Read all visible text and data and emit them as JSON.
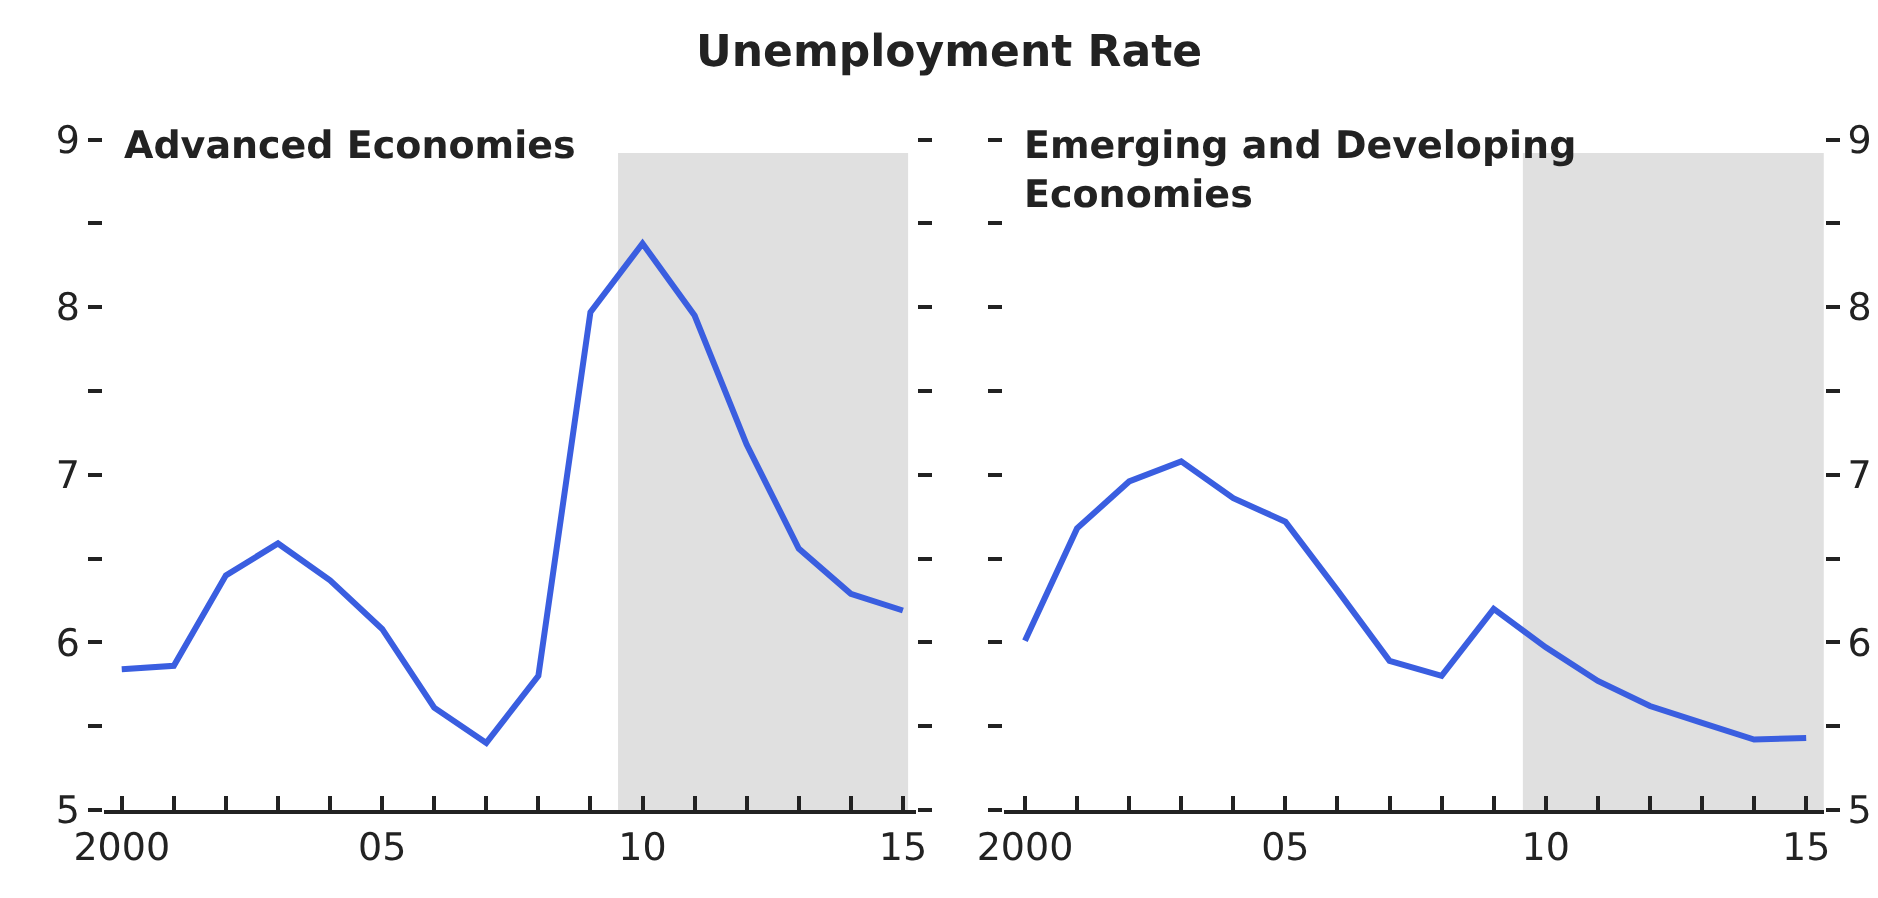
{
  "chart_data": [
    {
      "type": "line",
      "title": "Unemployment Rate",
      "subtitle": "Advanced Economies",
      "x": [
        2000,
        2001,
        2002,
        2003,
        2004,
        2005,
        2006,
        2007,
        2008,
        2009,
        2010,
        2011,
        2012,
        2013,
        2014,
        2015
      ],
      "series": [
        {
          "color": "#3a5ee0",
          "values": [
            5.84,
            5.86,
            6.4,
            6.59,
            6.37,
            6.08,
            5.61,
            5.4,
            5.8,
            7.97,
            8.38,
            7.95,
            7.18,
            6.56,
            6.29,
            6.19
          ]
        }
      ],
      "xlim": [
        1999.65,
        2015.25
      ],
      "ylim": [
        5,
        9
      ],
      "xticks": [
        {
          "value": 2000,
          "label": "2000"
        },
        {
          "value": 2001,
          "label": null
        },
        {
          "value": 2002,
          "label": null
        },
        {
          "value": 2003,
          "label": null
        },
        {
          "value": 2004,
          "label": null
        },
        {
          "value": 2005,
          "label": "05"
        },
        {
          "value": 2006,
          "label": null
        },
        {
          "value": 2007,
          "label": null
        },
        {
          "value": 2008,
          "label": null
        },
        {
          "value": 2009,
          "label": null
        },
        {
          "value": 2010,
          "label": "10"
        },
        {
          "value": 2011,
          "label": null
        },
        {
          "value": 2012,
          "label": null
        },
        {
          "value": 2013,
          "label": null
        },
        {
          "value": 2014,
          "label": null
        },
        {
          "value": 2015,
          "label": "15"
        }
      ],
      "yticks": [
        5,
        {
          "value": 5.5,
          "label": null
        },
        6,
        {
          "value": 6.5,
          "label": null
        },
        7,
        {
          "value": 7.5,
          "label": null
        },
        8,
        {
          "value": 8.5,
          "label": null
        },
        9
      ],
      "bands": [
        {
          "axis": "x",
          "from": 2009.53,
          "to": 2015.1,
          "color": "#e0e0e0"
        }
      ]
    },
    {
      "type": "line",
      "subtitle": "Emerging and Developing Economies",
      "x": [
        2000,
        2001,
        2002,
        2003,
        2004,
        2005,
        2006,
        2007,
        2008,
        2009,
        2010,
        2011,
        2012,
        2013,
        2014,
        2015
      ],
      "series": [
        {
          "color": "#3a5ee0",
          "values": [
            6.01,
            6.68,
            6.96,
            7.08,
            6.86,
            6.72,
            6.31,
            5.89,
            5.8,
            6.2,
            5.97,
            5.77,
            5.62,
            5.52,
            5.42,
            5.43
          ]
        }
      ],
      "xlim": [
        1999.6,
        2015.34
      ],
      "ylim": [
        5,
        9
      ],
      "xticks": [
        {
          "value": 2000,
          "label": "2000"
        },
        {
          "value": 2001,
          "label": null
        },
        {
          "value": 2002,
          "label": null
        },
        {
          "value": 2003,
          "label": null
        },
        {
          "value": 2004,
          "label": null
        },
        {
          "value": 2005,
          "label": "05"
        },
        {
          "value": 2006,
          "label": null
        },
        {
          "value": 2007,
          "label": null
        },
        {
          "value": 2008,
          "label": null
        },
        {
          "value": 2009,
          "label": null
        },
        {
          "value": 2010,
          "label": "10"
        },
        {
          "value": 2011,
          "label": null
        },
        {
          "value": 2012,
          "label": null
        },
        {
          "value": 2013,
          "label": null
        },
        {
          "value": 2014,
          "label": null
        },
        {
          "value": 2015,
          "label": "15"
        }
      ],
      "yticks": [
        5,
        {
          "value": 5.5,
          "label": null
        },
        6,
        {
          "value": 6.5,
          "label": null
        },
        7,
        {
          "value": 7.5,
          "label": null
        },
        8,
        {
          "value": 8.5,
          "label": null
        },
        9
      ],
      "bands": [
        {
          "axis": "x",
          "from": 2009.56,
          "to": 2015.34,
          "color": "#e0e0e0"
        }
      ]
    }
  ]
}
